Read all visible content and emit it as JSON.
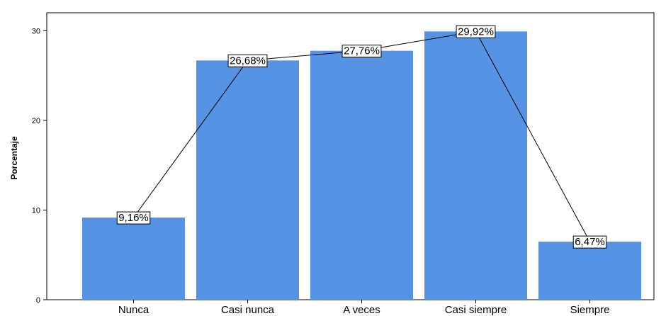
{
  "chart_data": {
    "type": "bar",
    "categories": [
      "Nunca",
      "Casi nunca",
      "A veces",
      "Casi siempre",
      "Siempre"
    ],
    "values": [
      9.16,
      26.68,
      27.76,
      29.92,
      6.47
    ],
    "data_labels": [
      "9,16%",
      "26,68%",
      "27,76%",
      "29,92%",
      "6,47%"
    ],
    "ylabel": "Porcentaje",
    "ylim": [
      0,
      32
    ],
    "yticks": [
      0,
      10,
      20,
      30
    ],
    "yticklabels": [
      "0",
      "10",
      "20",
      "30"
    ],
    "connecting_line": true,
    "grid": false,
    "colors": {
      "bar": "#5793e5",
      "line": "#000000",
      "frame": "#000000"
    }
  }
}
